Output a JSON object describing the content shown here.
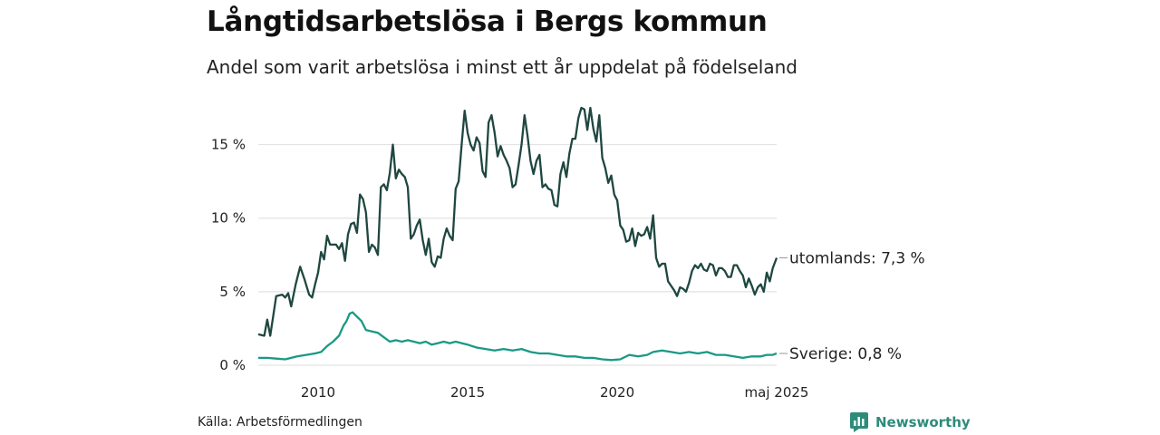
{
  "header": {
    "title": "Långtidsarbetslösa i Bergs kommun",
    "subtitle": "Andel som varit arbetslösa i minst ett år uppdelat på födelseland"
  },
  "footer": {
    "source": "Källa: Arbetsförmedlingen",
    "brand": "Newsworthy"
  },
  "colors": {
    "utomlands": "#1f4740",
    "sverige": "#1a9985",
    "grid": "#e3e3e3",
    "brand": "#2e8b7a"
  },
  "chart_data": {
    "type": "line",
    "title": "Långtidsarbetslösa i Bergs kommun",
    "subtitle": "Andel som varit arbetslösa i minst ett år uppdelat på födelseland",
    "x_range": [
      2008.0,
      2025.33
    ],
    "ylim": [
      0,
      17.5
    ],
    "y_ticks": [
      {
        "value": 0,
        "label": "0 %"
      },
      {
        "value": 5,
        "label": "5 %"
      },
      {
        "value": 10,
        "label": "10 %"
      },
      {
        "value": 15,
        "label": "15 %"
      }
    ],
    "x_ticks": [
      {
        "value": 2010,
        "label": "2010"
      },
      {
        "value": 2015,
        "label": "2015"
      },
      {
        "value": 2020,
        "label": "2020"
      },
      {
        "value": 2025.33,
        "label": "maj 2025"
      }
    ],
    "grid": true,
    "legend": "end-of-line labels",
    "series": [
      {
        "name": "utomlands",
        "end_label": "utomlands: 7,3 %",
        "color": "#1f4740",
        "points": [
          [
            2008.0,
            2.1
          ],
          [
            2008.2,
            2.0
          ],
          [
            2008.3,
            3.1
          ],
          [
            2008.4,
            2.0
          ],
          [
            2008.6,
            4.7
          ],
          [
            2008.8,
            4.8
          ],
          [
            2008.9,
            4.6
          ],
          [
            2009.0,
            4.9
          ],
          [
            2009.1,
            4.0
          ],
          [
            2009.25,
            5.5
          ],
          [
            2009.4,
            6.7
          ],
          [
            2009.55,
            5.8
          ],
          [
            2009.7,
            4.8
          ],
          [
            2009.8,
            4.6
          ],
          [
            2009.9,
            5.5
          ],
          [
            2010.0,
            6.3
          ],
          [
            2010.1,
            7.7
          ],
          [
            2010.2,
            7.2
          ],
          [
            2010.3,
            8.8
          ],
          [
            2010.4,
            8.2
          ],
          [
            2010.6,
            8.2
          ],
          [
            2010.7,
            7.9
          ],
          [
            2010.8,
            8.3
          ],
          [
            2010.9,
            7.1
          ],
          [
            2011.0,
            8.9
          ],
          [
            2011.1,
            9.6
          ],
          [
            2011.2,
            9.7
          ],
          [
            2011.3,
            9.0
          ],
          [
            2011.4,
            11.6
          ],
          [
            2011.5,
            11.3
          ],
          [
            2011.6,
            10.4
          ],
          [
            2011.7,
            7.7
          ],
          [
            2011.8,
            8.2
          ],
          [
            2011.9,
            8.0
          ],
          [
            2012.0,
            7.5
          ],
          [
            2012.1,
            12.1
          ],
          [
            2012.2,
            12.3
          ],
          [
            2012.3,
            11.9
          ],
          [
            2012.4,
            13.1
          ],
          [
            2012.5,
            15.0
          ],
          [
            2012.6,
            12.7
          ],
          [
            2012.7,
            13.3
          ],
          [
            2012.8,
            13.0
          ],
          [
            2012.9,
            12.8
          ],
          [
            2013.0,
            12.1
          ],
          [
            2013.1,
            8.6
          ],
          [
            2013.2,
            8.9
          ],
          [
            2013.3,
            9.5
          ],
          [
            2013.4,
            9.9
          ],
          [
            2013.5,
            8.5
          ],
          [
            2013.6,
            7.5
          ],
          [
            2013.7,
            8.6
          ],
          [
            2013.8,
            7.0
          ],
          [
            2013.9,
            6.7
          ],
          [
            2014.0,
            7.4
          ],
          [
            2014.1,
            7.3
          ],
          [
            2014.2,
            8.6
          ],
          [
            2014.3,
            9.3
          ],
          [
            2014.4,
            8.8
          ],
          [
            2014.5,
            8.5
          ],
          [
            2014.6,
            12.0
          ],
          [
            2014.7,
            12.5
          ],
          [
            2014.8,
            15.0
          ],
          [
            2014.9,
            17.3
          ],
          [
            2015.0,
            15.8
          ],
          [
            2015.1,
            15.0
          ],
          [
            2015.2,
            14.6
          ],
          [
            2015.3,
            15.5
          ],
          [
            2015.4,
            15.1
          ],
          [
            2015.5,
            13.2
          ],
          [
            2015.6,
            12.8
          ],
          [
            2015.7,
            16.5
          ],
          [
            2015.8,
            17.0
          ],
          [
            2015.9,
            15.8
          ],
          [
            2016.0,
            14.2
          ],
          [
            2016.1,
            14.9
          ],
          [
            2016.2,
            14.3
          ],
          [
            2016.3,
            13.9
          ],
          [
            2016.4,
            13.4
          ],
          [
            2016.5,
            12.1
          ],
          [
            2016.6,
            12.3
          ],
          [
            2016.7,
            13.6
          ],
          [
            2016.8,
            15.0
          ],
          [
            2016.9,
            17.0
          ],
          [
            2017.0,
            15.6
          ],
          [
            2017.1,
            13.9
          ],
          [
            2017.2,
            13.0
          ],
          [
            2017.3,
            13.9
          ],
          [
            2017.4,
            14.3
          ],
          [
            2017.5,
            12.1
          ],
          [
            2017.6,
            12.3
          ],
          [
            2017.7,
            12.0
          ],
          [
            2017.8,
            11.9
          ],
          [
            2017.9,
            10.9
          ],
          [
            2018.0,
            10.8
          ],
          [
            2018.1,
            13.0
          ],
          [
            2018.2,
            13.8
          ],
          [
            2018.3,
            12.8
          ],
          [
            2018.4,
            14.4
          ],
          [
            2018.5,
            15.4
          ],
          [
            2018.6,
            15.4
          ],
          [
            2018.7,
            16.8
          ],
          [
            2018.8,
            17.5
          ],
          [
            2018.9,
            17.4
          ],
          [
            2019.0,
            16.0
          ],
          [
            2019.1,
            17.5
          ],
          [
            2019.2,
            16.1
          ],
          [
            2019.3,
            15.2
          ],
          [
            2019.4,
            17.0
          ],
          [
            2019.5,
            14.1
          ],
          [
            2019.6,
            13.4
          ],
          [
            2019.7,
            12.4
          ],
          [
            2019.8,
            12.9
          ],
          [
            2019.9,
            11.6
          ],
          [
            2020.0,
            11.2
          ],
          [
            2020.1,
            9.5
          ],
          [
            2020.2,
            9.2
          ],
          [
            2020.3,
            8.4
          ],
          [
            2020.4,
            8.5
          ],
          [
            2020.5,
            9.3
          ],
          [
            2020.6,
            8.1
          ],
          [
            2020.7,
            9.0
          ],
          [
            2020.8,
            8.8
          ],
          [
            2020.9,
            8.9
          ],
          [
            2021.0,
            9.4
          ],
          [
            2021.1,
            8.6
          ],
          [
            2021.2,
            10.2
          ],
          [
            2021.3,
            7.3
          ],
          [
            2021.4,
            6.7
          ],
          [
            2021.5,
            6.9
          ],
          [
            2021.6,
            6.9
          ],
          [
            2021.7,
            5.7
          ],
          [
            2021.8,
            5.4
          ],
          [
            2021.9,
            5.1
          ],
          [
            2022.0,
            4.7
          ],
          [
            2022.1,
            5.3
          ],
          [
            2022.2,
            5.2
          ],
          [
            2022.3,
            5.0
          ],
          [
            2022.4,
            5.6
          ],
          [
            2022.5,
            6.4
          ],
          [
            2022.6,
            6.8
          ],
          [
            2022.7,
            6.6
          ],
          [
            2022.8,
            6.9
          ],
          [
            2022.9,
            6.5
          ],
          [
            2023.0,
            6.4
          ],
          [
            2023.1,
            6.9
          ],
          [
            2023.2,
            6.8
          ],
          [
            2023.3,
            6.1
          ],
          [
            2023.4,
            6.6
          ],
          [
            2023.5,
            6.6
          ],
          [
            2023.6,
            6.4
          ],
          [
            2023.7,
            6.0
          ],
          [
            2023.8,
            6.0
          ],
          [
            2023.9,
            6.8
          ],
          [
            2024.0,
            6.8
          ],
          [
            2024.1,
            6.4
          ],
          [
            2024.2,
            6.1
          ],
          [
            2024.3,
            5.3
          ],
          [
            2024.4,
            5.9
          ],
          [
            2024.5,
            5.4
          ],
          [
            2024.6,
            4.8
          ],
          [
            2024.7,
            5.3
          ],
          [
            2024.8,
            5.5
          ],
          [
            2024.9,
            5.0
          ],
          [
            2025.0,
            6.3
          ],
          [
            2025.1,
            5.7
          ],
          [
            2025.2,
            6.6
          ],
          [
            2025.33,
            7.3
          ]
        ]
      },
      {
        "name": "Sverige",
        "end_label": "Sverige: 0,8 %",
        "color": "#1a9985",
        "points": [
          [
            2008.0,
            0.5
          ],
          [
            2008.3,
            0.5
          ],
          [
            2008.6,
            0.45
          ],
          [
            2008.9,
            0.4
          ],
          [
            2009.1,
            0.5
          ],
          [
            2009.3,
            0.6
          ],
          [
            2009.6,
            0.7
          ],
          [
            2009.9,
            0.8
          ],
          [
            2010.1,
            0.9
          ],
          [
            2010.3,
            1.3
          ],
          [
            2010.5,
            1.6
          ],
          [
            2010.7,
            2.0
          ],
          [
            2010.85,
            2.7
          ],
          [
            2010.95,
            3.0
          ],
          [
            2011.05,
            3.5
          ],
          [
            2011.15,
            3.6
          ],
          [
            2011.3,
            3.3
          ],
          [
            2011.45,
            3.0
          ],
          [
            2011.6,
            2.4
          ],
          [
            2011.8,
            2.3
          ],
          [
            2012.0,
            2.2
          ],
          [
            2012.2,
            1.9
          ],
          [
            2012.4,
            1.6
          ],
          [
            2012.6,
            1.7
          ],
          [
            2012.8,
            1.6
          ],
          [
            2013.0,
            1.7
          ],
          [
            2013.2,
            1.6
          ],
          [
            2013.4,
            1.5
          ],
          [
            2013.6,
            1.6
          ],
          [
            2013.8,
            1.4
          ],
          [
            2014.0,
            1.5
          ],
          [
            2014.2,
            1.6
          ],
          [
            2014.4,
            1.5
          ],
          [
            2014.6,
            1.6
          ],
          [
            2014.8,
            1.5
          ],
          [
            2015.0,
            1.4
          ],
          [
            2015.3,
            1.2
          ],
          [
            2015.6,
            1.1
          ],
          [
            2015.9,
            1.0
          ],
          [
            2016.2,
            1.1
          ],
          [
            2016.5,
            1.0
          ],
          [
            2016.8,
            1.1
          ],
          [
            2017.1,
            0.9
          ],
          [
            2017.4,
            0.8
          ],
          [
            2017.7,
            0.8
          ],
          [
            2018.0,
            0.7
          ],
          [
            2018.3,
            0.6
          ],
          [
            2018.6,
            0.6
          ],
          [
            2018.9,
            0.5
          ],
          [
            2019.2,
            0.5
          ],
          [
            2019.5,
            0.4
          ],
          [
            2019.8,
            0.35
          ],
          [
            2020.1,
            0.4
          ],
          [
            2020.4,
            0.7
          ],
          [
            2020.7,
            0.6
          ],
          [
            2021.0,
            0.7
          ],
          [
            2021.2,
            0.9
          ],
          [
            2021.5,
            1.0
          ],
          [
            2021.8,
            0.9
          ],
          [
            2022.1,
            0.8
          ],
          [
            2022.4,
            0.9
          ],
          [
            2022.7,
            0.8
          ],
          [
            2023.0,
            0.9
          ],
          [
            2023.3,
            0.7
          ],
          [
            2023.6,
            0.7
          ],
          [
            2023.9,
            0.6
          ],
          [
            2024.2,
            0.5
          ],
          [
            2024.5,
            0.6
          ],
          [
            2024.8,
            0.6
          ],
          [
            2025.0,
            0.7
          ],
          [
            2025.2,
            0.7
          ],
          [
            2025.33,
            0.8
          ]
        ]
      }
    ]
  }
}
